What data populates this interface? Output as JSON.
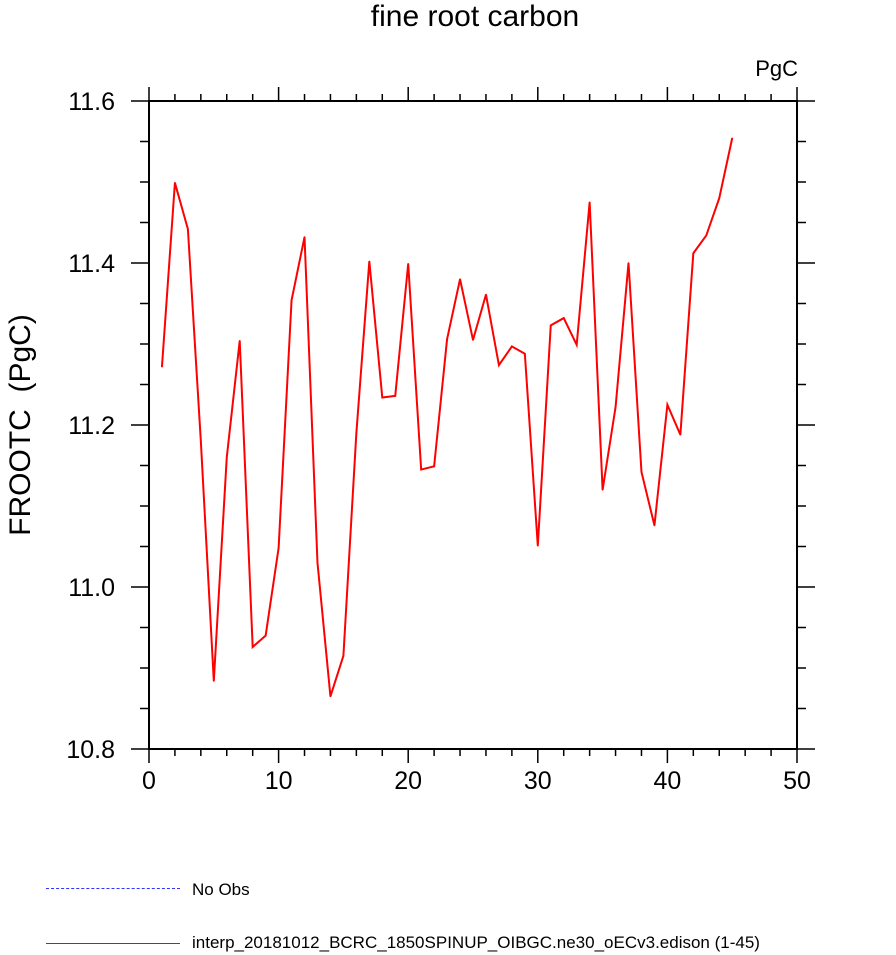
{
  "chart_data": {
    "type": "line",
    "title": "fine root carbon",
    "units_label": "PgC",
    "ylabel": "FROOTC  (PgC)",
    "xlabel": "",
    "xlim": [
      0,
      50
    ],
    "ylim": [
      10.8,
      11.6
    ],
    "x_ticks": [
      "0",
      "10",
      "20",
      "30",
      "40",
      "50"
    ],
    "y_ticks": [
      "10.8",
      "11.0",
      "11.2",
      "11.4",
      "11.6"
    ],
    "grid": false,
    "series": [
      {
        "name": "interp_20181012_BCRC_1850SPINUP_OIBGC.ne30_oECv3.edison (1-45)",
        "color": "#ff0000",
        "x": [
          1,
          2,
          3,
          4,
          5,
          6,
          7,
          8,
          9,
          10,
          11,
          12,
          13,
          14,
          15,
          16,
          17,
          18,
          19,
          20,
          21,
          22,
          23,
          24,
          25,
          26,
          27,
          28,
          29,
          30,
          31,
          32,
          33,
          34,
          35,
          36,
          37,
          38,
          39,
          40,
          41,
          42,
          43,
          44,
          45
        ],
        "values": [
          11.272,
          11.499,
          11.442,
          11.18,
          10.884,
          11.16,
          11.304,
          10.926,
          10.94,
          11.048,
          11.354,
          11.432,
          11.03,
          10.865,
          10.915,
          11.19,
          11.402,
          11.234,
          11.236,
          11.399,
          11.145,
          11.149,
          11.306,
          11.38,
          11.305,
          11.361,
          11.274,
          11.297,
          11.288,
          11.051,
          11.323,
          11.332,
          11.299,
          11.475,
          11.12,
          11.222,
          11.4,
          11.142,
          11.076,
          11.225,
          11.188,
          11.412,
          11.434,
          11.48,
          11.554
        ]
      }
    ],
    "legend": [
      {
        "label": "No Obs",
        "color": "#3333ff",
        "style": "dashed"
      },
      {
        "label": "interp_20181012_BCRC_1850SPINUP_OIBGC.ne30_oECv3.edison (1-45)",
        "color": "#ff0000",
        "style": "solid"
      }
    ]
  }
}
